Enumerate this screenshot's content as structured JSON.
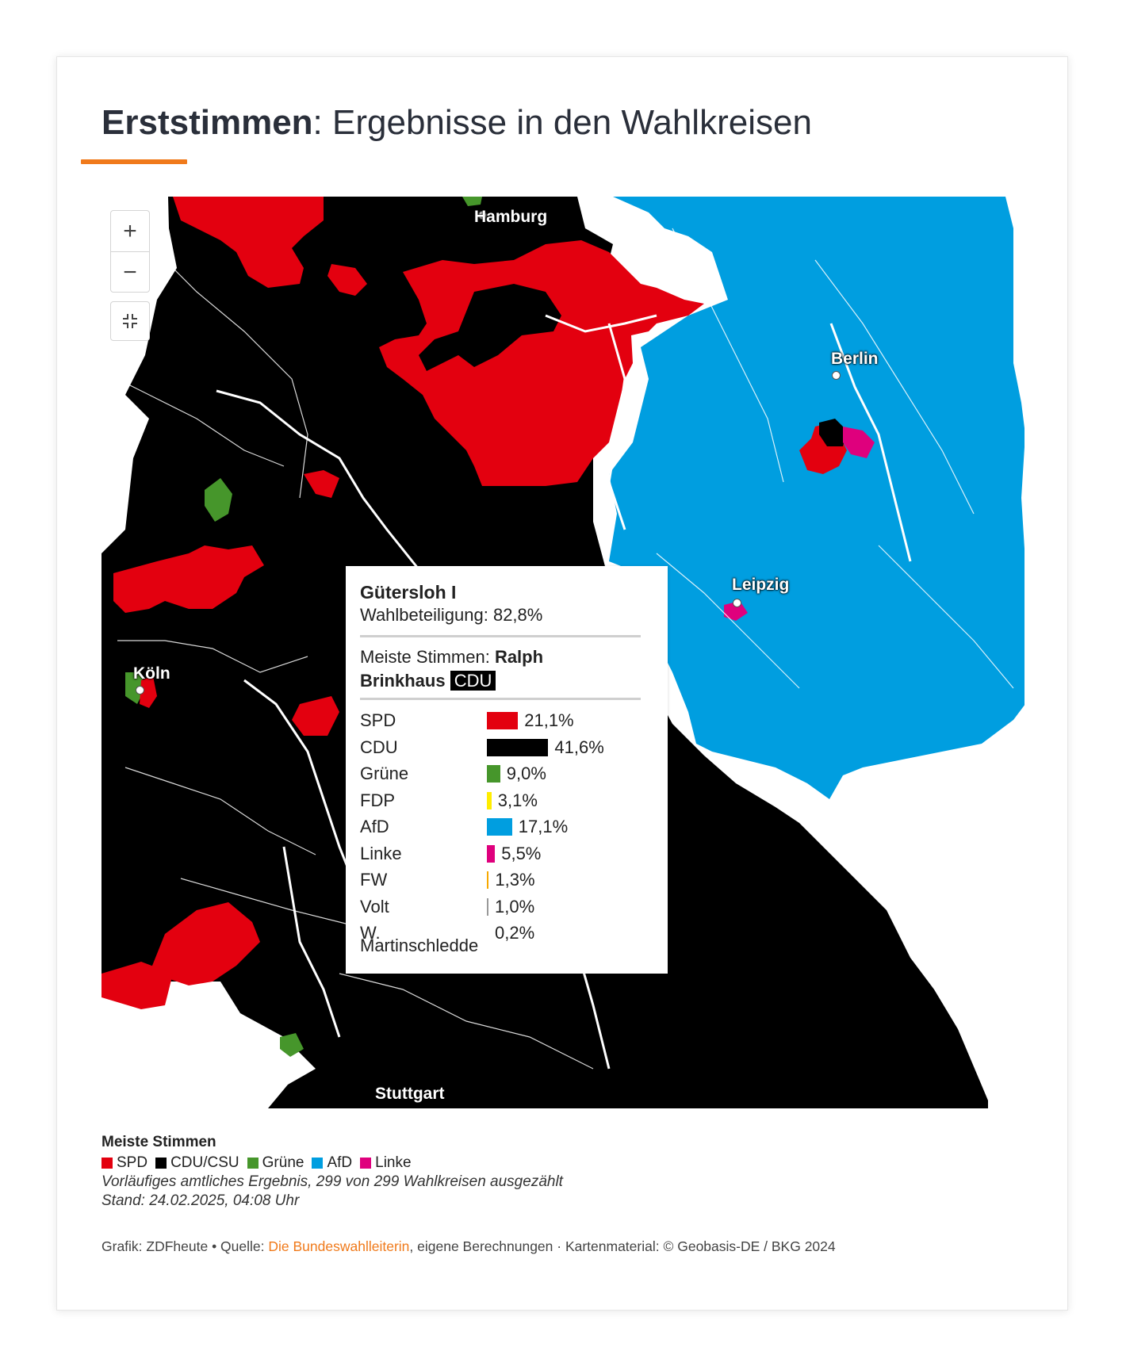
{
  "title": {
    "bold": "Erststimmen",
    "rest": ": Ergebnisse in den Wahlkreisen"
  },
  "colors": {
    "accent": "#f07a1b",
    "spd": "#e3000f",
    "cdu": "#000000",
    "gruene": "#46962b",
    "fdp": "#ffed00",
    "afd": "#009ee0",
    "linke": "#df007d",
    "fw": "#f7a800",
    "volt": "#999999"
  },
  "map_controls": {
    "zoom_in": "+",
    "zoom_out": "−",
    "reset_icon": "compress-icon"
  },
  "cities": {
    "hamburg": "Hamburg",
    "berlin": "Berlin",
    "leipzig": "Leipzig",
    "koeln": "Köln",
    "stuttgart": "Stuttgart"
  },
  "tooltip": {
    "district": "Gütersloh I",
    "turnout": "Wahlbeteiligung: 82,8%",
    "winner_prefix": "Meiste Stimmen: ",
    "winner_first": "Ralph",
    "winner_last": "Brinkhaus",
    "winner_party": "CDU",
    "results": [
      {
        "party": "SPD",
        "pct": "21,1%",
        "value": 21.1,
        "color": "#e3000f"
      },
      {
        "party": "CDU",
        "pct": "41,6%",
        "value": 41.6,
        "color": "#000000"
      },
      {
        "party": "Grüne",
        "pct": "9,0%",
        "value": 9.0,
        "color": "#46962b"
      },
      {
        "party": "FDP",
        "pct": "3,1%",
        "value": 3.1,
        "color": "#ffed00"
      },
      {
        "party": "AfD",
        "pct": "17,1%",
        "value": 17.1,
        "color": "#009ee0"
      },
      {
        "party": "Linke",
        "pct": "5,5%",
        "value": 5.5,
        "color": "#df007d"
      },
      {
        "party": "FW",
        "pct": "1,3%",
        "value": 1.3,
        "color": "#f7a800"
      },
      {
        "party": "Volt",
        "pct": "1,0%",
        "value": 1.0,
        "color": "#999999"
      },
      {
        "party": "W.",
        "pct": "0,2%",
        "value": 0.2,
        "color": "#999999"
      }
    ],
    "last_line": "Martinschledde"
  },
  "legend": {
    "title": "Meiste Stimmen",
    "items": [
      {
        "label": "SPD",
        "color": "#e3000f"
      },
      {
        "label": "CDU/CSU",
        "color": "#000000"
      },
      {
        "label": "Grüne",
        "color": "#46962b"
      },
      {
        "label": "AfD",
        "color": "#009ee0"
      },
      {
        "label": "Linke",
        "color": "#df007d"
      }
    ]
  },
  "notes": {
    "line1": "Vorläufiges amtliches Ergebnis, 299 von 299 Wahlkreisen ausgezählt",
    "line2": "Stand: 24.02.2025, 04:08 Uhr"
  },
  "credits": {
    "prefix": "Grafik: ZDFheute • Quelle: ",
    "link": "Die Bundeswahlleiterin",
    "suffix": ", eigene Berechnungen · Kartenmaterial: © Geobasis-DE / BKG 2024"
  }
}
